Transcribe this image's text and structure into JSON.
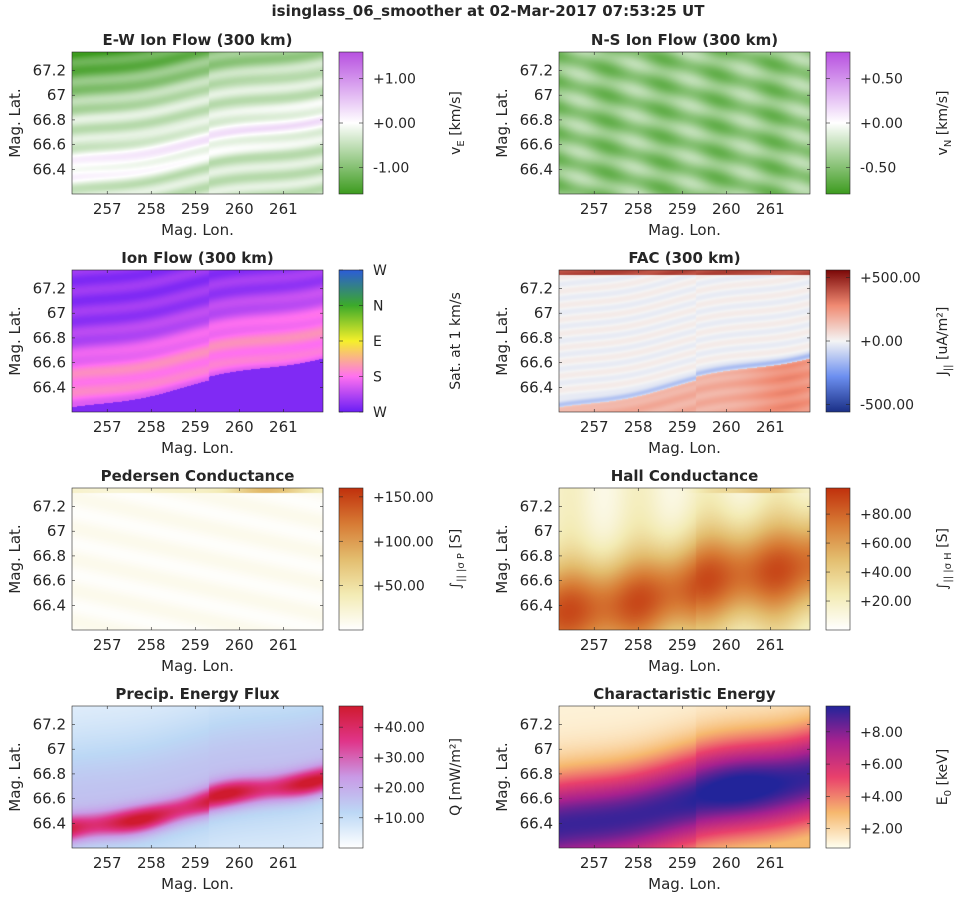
{
  "figure_title": "isinglass_06_smoother at 02-Mar-2017 07:53:25 UT",
  "chart_data": [
    {
      "type": "heatmap",
      "title": "E-W Ion Flow (300 km)",
      "xlabel": "Mag. Lon.",
      "ylabel": "Mag. Lat.",
      "xlim": [
        256.2,
        261.9
      ],
      "ylim": [
        66.2,
        67.35
      ],
      "xticks": [
        "257",
        "258",
        "259",
        "260",
        "261"
      ],
      "xtick_values": [
        257,
        258,
        259,
        260,
        261
      ],
      "yticks": [
        "67.2",
        "67",
        "66.8",
        "66.6",
        "66.4"
      ],
      "ytick_values": [
        67.2,
        67.0,
        66.8,
        66.6,
        66.4
      ],
      "colorbar": {
        "label": "v_E [km/s]",
        "label_main": "v",
        "label_sub": "E",
        "label_tail": "[km/s]",
        "range": [
          -1.6,
          1.6
        ],
        "ticks": [
          "+1.00",
          "+0.00",
          "-1.00"
        ],
        "tick_values": [
          1.0,
          0.0,
          -1.0
        ],
        "colors": [
          "#3c9b1e",
          "#ffffff",
          "#b750e0"
        ]
      },
      "field": "ew"
    },
    {
      "type": "heatmap",
      "title": "N-S Ion Flow (300 km)",
      "xlabel": "Mag. Lon.",
      "ylabel": "Mag. Lat.",
      "xlim": [
        256.2,
        261.9
      ],
      "ylim": [
        66.2,
        67.35
      ],
      "xticks": [
        "257",
        "258",
        "259",
        "260",
        "261"
      ],
      "xtick_values": [
        257,
        258,
        259,
        260,
        261
      ],
      "yticks": [
        "67.2",
        "67",
        "66.8",
        "66.6",
        "66.4"
      ],
      "ytick_values": [
        67.2,
        67.0,
        66.8,
        66.6,
        66.4
      ],
      "colorbar": {
        "label": "v_N [km/s]",
        "label_main": "v",
        "label_sub": "N",
        "label_tail": "[km/s]",
        "range": [
          -0.8,
          0.8
        ],
        "ticks": [
          "+0.50",
          "+0.00",
          "-0.50"
        ],
        "tick_values": [
          0.5,
          0.0,
          -0.5
        ],
        "colors": [
          "#3c9b1e",
          "#ffffff",
          "#b750e0"
        ]
      },
      "field": "ns"
    },
    {
      "type": "heatmap",
      "title": "Ion Flow (300 km)",
      "xlabel": "Mag. Lon.",
      "ylabel": "Mag. Lat.",
      "xlim": [
        256.2,
        261.9
      ],
      "ylim": [
        66.2,
        67.35
      ],
      "xticks": [
        "257",
        "258",
        "259",
        "260",
        "261"
      ],
      "xtick_values": [
        257,
        258,
        259,
        260,
        261
      ],
      "yticks": [
        "67.2",
        "67",
        "66.8",
        "66.6",
        "66.4"
      ],
      "ytick_values": [
        67.2,
        67.0,
        66.8,
        66.6,
        66.4
      ],
      "colorbar": {
        "label": "Sat. at 1 km/s",
        "label_main": "Sat. at 1 km/s",
        "label_sub": "",
        "label_tail": "",
        "range": [
          0,
          4
        ],
        "ticks": [
          "W",
          "N",
          "E",
          "S",
          "W"
        ],
        "tick_values": [
          4,
          3,
          2,
          1,
          0
        ],
        "colors": [
          "#6a1ef5",
          "#ff70f0",
          "#f5f02a",
          "#3caa2a",
          "#2b5cd8"
        ]
      },
      "field": "ion"
    },
    {
      "type": "heatmap",
      "title": "FAC (300 km)",
      "xlabel": "Mag. Lon.",
      "ylabel": "Mag. Lat.",
      "xlim": [
        256.2,
        261.9
      ],
      "ylim": [
        66.2,
        67.35
      ],
      "xticks": [
        "257",
        "258",
        "259",
        "260",
        "261"
      ],
      "xtick_values": [
        257,
        258,
        259,
        260,
        261
      ],
      "yticks": [
        "67.2",
        "67",
        "66.8",
        "66.6",
        "66.4"
      ],
      "ytick_values": [
        67.2,
        67.0,
        66.8,
        66.6,
        66.4
      ],
      "colorbar": {
        "label": "J_|| [uA/m^2]",
        "label_main": "J",
        "label_sub": "||",
        "label_tail": "[uA/m²]",
        "range": [
          -560,
          560
        ],
        "ticks": [
          "+500.00",
          "+0.00",
          "-500.00"
        ],
        "tick_values": [
          500,
          0,
          -500
        ],
        "colors": [
          "#1a2f86",
          "#6c8ff0",
          "#f4f4f4",
          "#f08a72",
          "#7a0707"
        ]
      },
      "field": "fac"
    },
    {
      "type": "heatmap",
      "title": "Pedersen Conductance",
      "xlabel": "Mag. Lon.",
      "ylabel": "Mag. Lat.",
      "xlim": [
        256.2,
        261.9
      ],
      "ylim": [
        66.2,
        67.35
      ],
      "xticks": [
        "257",
        "258",
        "259",
        "260",
        "261"
      ],
      "xtick_values": [
        257,
        258,
        259,
        260,
        261
      ],
      "yticks": [
        "67.2",
        "67",
        "66.8",
        "66.6",
        "66.4"
      ],
      "ytick_values": [
        67.2,
        67.0,
        66.8,
        66.6,
        66.4
      ],
      "colorbar": {
        "label": "∫|| σP [S]",
        "label_main": "∫",
        "label_sub": "|| |σ P",
        "label_tail": "[S]",
        "range": [
          0,
          160
        ],
        "ticks": [
          "+150.00",
          "+100.00",
          "+50.00"
        ],
        "tick_values": [
          150,
          100,
          50
        ],
        "colors": [
          "#ffffff",
          "#f3ebb4",
          "#e3bd6e",
          "#d77a34",
          "#c0300c"
        ]
      },
      "field": "ped"
    },
    {
      "type": "heatmap",
      "title": "Hall Conductance",
      "xlabel": "Mag. Lon.",
      "ylabel": "Mag. Lat.",
      "xlim": [
        256.2,
        261.9
      ],
      "ylim": [
        66.2,
        67.35
      ],
      "xticks": [
        "257",
        "258",
        "259",
        "260",
        "261"
      ],
      "xtick_values": [
        257,
        258,
        259,
        260,
        261
      ],
      "yticks": [
        "67.2",
        "67",
        "66.8",
        "66.6",
        "66.4"
      ],
      "ytick_values": [
        67.2,
        67.0,
        66.8,
        66.6,
        66.4
      ],
      "colorbar": {
        "label": "∫|| σH [S]",
        "label_main": "∫",
        "label_sub": "|| |σ H",
        "label_tail": "[S]",
        "range": [
          0,
          98
        ],
        "ticks": [
          "+80.00",
          "+60.00",
          "+40.00",
          "+20.00"
        ],
        "tick_values": [
          80,
          60,
          40,
          20
        ],
        "colors": [
          "#ffffff",
          "#f3ebb4",
          "#e3bd6e",
          "#d77a34",
          "#c0300c"
        ]
      },
      "field": "hall"
    },
    {
      "type": "heatmap",
      "title": "Precip. Energy Flux",
      "xlabel": "Mag. Lon.",
      "ylabel": "Mag. Lat.",
      "xlim": [
        256.2,
        261.9
      ],
      "ylim": [
        66.2,
        67.35
      ],
      "xticks": [
        "257",
        "258",
        "259",
        "260",
        "261"
      ],
      "xtick_values": [
        257,
        258,
        259,
        260,
        261
      ],
      "yticks": [
        "67.2",
        "67",
        "66.8",
        "66.6",
        "66.4"
      ],
      "ytick_values": [
        67.2,
        67.0,
        66.8,
        66.6,
        66.4
      ],
      "colorbar": {
        "label": "Q [mW/m^2]",
        "label_main": "Q",
        "label_sub": "",
        "label_tail": "[mW/m²]",
        "range": [
          0,
          47
        ],
        "ticks": [
          "+40.00",
          "+30.00",
          "+20.00",
          "+10.00"
        ],
        "tick_values": [
          40,
          30,
          20,
          10
        ],
        "colors": [
          "#ffffff",
          "#bcd8f5",
          "#c99ae6",
          "#e0358a",
          "#cf1a2e"
        ]
      },
      "field": "q"
    },
    {
      "type": "heatmap",
      "title": "Charactaristic Energy",
      "xlabel": "Mag. Lon.",
      "ylabel": "Mag. Lat.",
      "xlim": [
        256.2,
        261.9
      ],
      "ylim": [
        66.2,
        67.35
      ],
      "xticks": [
        "257",
        "258",
        "259",
        "260",
        "261"
      ],
      "xtick_values": [
        257,
        258,
        259,
        260,
        261
      ],
      "yticks": [
        "67.2",
        "67",
        "66.8",
        "66.6",
        "66.4"
      ],
      "ytick_values": [
        67.2,
        67.0,
        66.8,
        66.6,
        66.4
      ],
      "colorbar": {
        "label": "E_0 [keV]",
        "label_main": "E",
        "label_sub": "0",
        "label_tail": "[keV]",
        "range": [
          0.8,
          9.6
        ],
        "ticks": [
          "+8.00",
          "+6.00",
          "+4.00",
          "+2.00"
        ],
        "tick_values": [
          8,
          6,
          4,
          2
        ],
        "colors": [
          "#fffff0",
          "#f6b86e",
          "#e9406c",
          "#a7218f",
          "#22249a"
        ]
      },
      "field": "e0"
    }
  ]
}
